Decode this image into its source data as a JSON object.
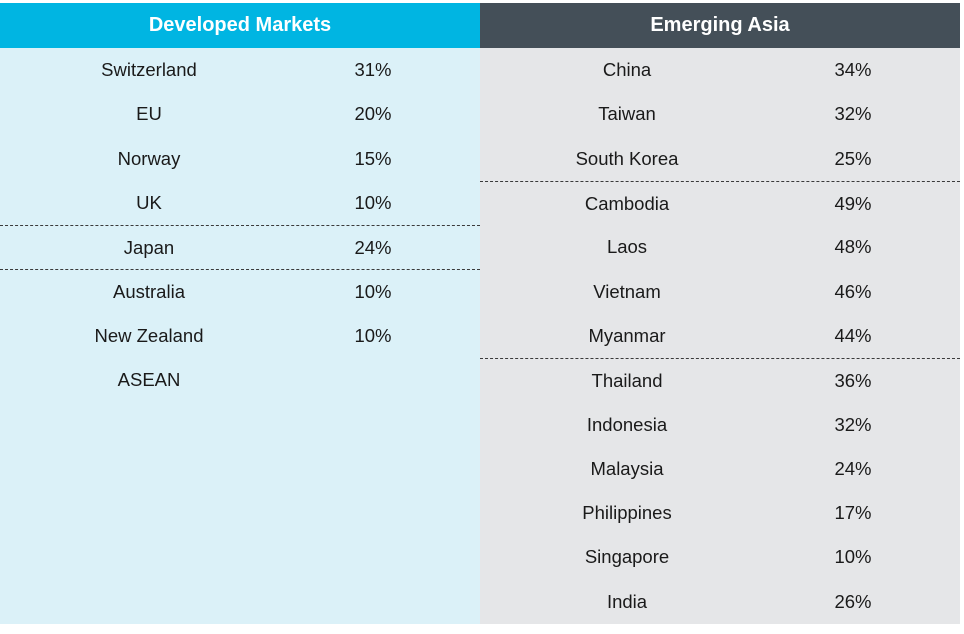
{
  "chart_data": {
    "type": "table",
    "columns": [
      {
        "title": "Developed Markets",
        "header_color": "#00b5e2",
        "background_color": "#dbf1f8",
        "rows": [
          {
            "name": "Switzerland",
            "value": "31%"
          },
          {
            "name": "EU",
            "value": "20%"
          },
          {
            "name": "Norway",
            "value": "15%"
          },
          {
            "name": "UK",
            "value": "10%"
          },
          {
            "name": "Japan",
            "value": "24%"
          },
          {
            "name": "Australia",
            "value": "10%"
          },
          {
            "name": "New Zealand",
            "value": "10%"
          },
          {
            "name": "ASEAN",
            "value": ""
          }
        ],
        "group_separators_before_row": [
          4,
          5
        ]
      },
      {
        "title": "Emerging Asia",
        "header_color": "#444f58",
        "background_color": "#e5e6e8",
        "rows": [
          {
            "name": "China",
            "value": "34%"
          },
          {
            "name": "Taiwan",
            "value": "32%"
          },
          {
            "name": "South Korea",
            "value": "25%"
          },
          {
            "name": "Cambodia",
            "value": "49%"
          },
          {
            "name": "Laos",
            "value": "48%"
          },
          {
            "name": "Vietnam",
            "value": "46%"
          },
          {
            "name": "Myanmar",
            "value": "44%"
          },
          {
            "name": "Thailand",
            "value": "36%"
          },
          {
            "name": "Indonesia",
            "value": "32%"
          },
          {
            "name": "Malaysia",
            "value": "24%"
          },
          {
            "name": "Philippines",
            "value": "17%"
          },
          {
            "name": "Singapore",
            "value": "10%"
          },
          {
            "name": "India",
            "value": "26%"
          }
        ],
        "group_separators_before_row": [
          3,
          7
        ]
      }
    ]
  }
}
